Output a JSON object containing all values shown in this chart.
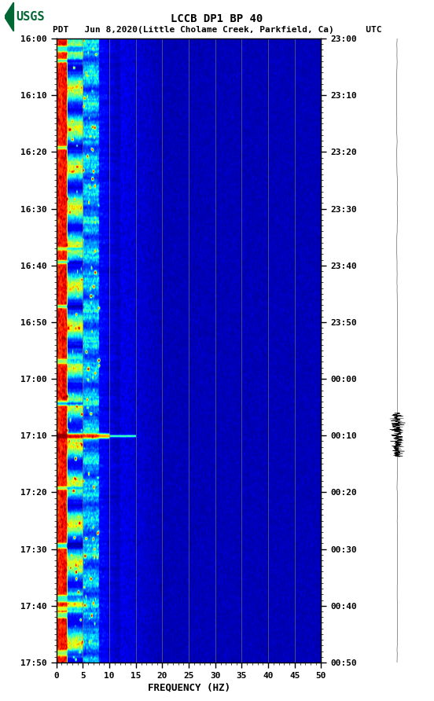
{
  "title_line1": "LCCB DP1 BP 40",
  "title_line2": "PDT   Jun 8,2020(Little Cholame Creek, Parkfield, Ca)      UTC",
  "xlabel": "FREQUENCY (HZ)",
  "xmin": 0,
  "xmax": 50,
  "x_ticks": [
    0,
    5,
    10,
    15,
    20,
    25,
    30,
    35,
    40,
    45,
    50
  ],
  "left_time_labels": [
    "16:00",
    "16:10",
    "16:20",
    "16:30",
    "16:40",
    "16:50",
    "17:00",
    "17:10",
    "17:20",
    "17:30",
    "17:40",
    "17:50"
  ],
  "right_time_labels": [
    "23:00",
    "23:10",
    "23:20",
    "23:30",
    "23:40",
    "23:50",
    "00:00",
    "00:10",
    "00:20",
    "00:30",
    "00:40",
    "00:50"
  ],
  "fig_bg": "#ffffff",
  "vertical_grid_lines": [
    5,
    10,
    15,
    20,
    25,
    30,
    35,
    40,
    45
  ],
  "noise_seed": 42,
  "num_time_steps": 660,
  "num_freq_steps": 500,
  "grid_line_color": "#808060",
  "grid_line_alpha": 0.7
}
